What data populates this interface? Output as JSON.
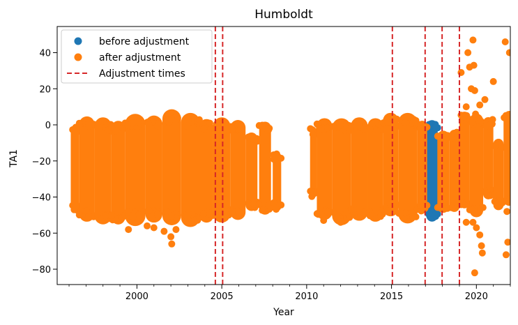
{
  "chart_data": {
    "type": "scatter",
    "title": "Humboldt",
    "xlabel": "Year",
    "ylabel": "TA1",
    "xlim": [
      1995.3,
      2022.0
    ],
    "ylim": [
      -88.5,
      54.5
    ],
    "x_ticks": [
      2000,
      2005,
      2010,
      2015,
      2020
    ],
    "y_ticks": [
      -80,
      -60,
      -40,
      -20,
      0,
      20,
      40
    ],
    "legend_position": "upper-left",
    "grid": false,
    "colors": {
      "before": "#1f77b4",
      "after": "#ff7f0e",
      "adjustment": "#d62728"
    },
    "legend": [
      {
        "label": "before adjustment",
        "kind": "marker",
        "color": "#1f77b4"
      },
      {
        "label": "after adjustment",
        "kind": "marker",
        "color": "#ff7f0e"
      },
      {
        "label": "Adjustment times",
        "kind": "dashed-line",
        "color": "#d62728"
      }
    ],
    "adjustment_times": [
      2004.62,
      2005.05,
      2015.05,
      2016.98,
      2017.98,
      2019.0
    ],
    "series": [
      {
        "name": "before adjustment",
        "bands": [
          {
            "x": [
              2017.05,
              2017.72
            ],
            "y": [
              -52,
              1
            ]
          },
          {
            "x": [
              2018.95,
              2019.15
            ],
            "y": [
              -40,
              -3
            ]
          }
        ],
        "points": []
      },
      {
        "name": "after adjustment",
        "bands": [
          {
            "x": [
              1996.1,
              1996.6
            ],
            "y": [
              -48,
              -1
            ]
          },
          {
            "x": [
              1996.6,
              1997.5
            ],
            "y": [
              -51,
              2
            ]
          },
          {
            "x": [
              1997.5,
              1998.5
            ],
            "y": [
              -52,
              1
            ]
          },
          {
            "x": [
              1998.5,
              1999.3
            ],
            "y": [
              -53,
              0
            ]
          },
          {
            "x": [
              1999.3,
              2000.5
            ],
            "y": [
              -52,
              2
            ]
          },
          {
            "x": [
              2000.5,
              2001.5
            ],
            "y": [
              -51,
              2
            ]
          },
          {
            "x": [
              2001.5,
              2002.6
            ],
            "y": [
              -52,
              5
            ]
          },
          {
            "x": [
              2002.6,
              2003.7
            ],
            "y": [
              -53,
              3
            ]
          },
          {
            "x": [
              2003.7,
              2004.5
            ],
            "y": [
              -52,
              1
            ]
          },
          {
            "x": [
              2004.5,
              2005.5
            ],
            "y": [
              -51,
              1
            ]
          },
          {
            "x": [
              2005.5,
              2006.4
            ],
            "y": [
              -50,
              0
            ]
          },
          {
            "x": [
              2006.4,
              2007.1
            ],
            "y": [
              -46,
              -6
            ]
          },
          {
            "x": [
              2007.2,
              2007.9
            ],
            "y": [
              -48,
              0
            ]
          },
          {
            "x": [
              2008.0,
              2008.5
            ],
            "y": [
              -47,
              -16
            ]
          },
          {
            "x": [
              2010.2,
              2010.6
            ],
            "y": [
              -40,
              -2
            ]
          },
          {
            "x": [
              2010.6,
              2011.5
            ],
            "y": [
              -50,
              1
            ]
          },
          {
            "x": [
              2011.5,
              2012.6
            ],
            "y": [
              -52,
              0
            ]
          },
          {
            "x": [
              2012.6,
              2013.6
            ],
            "y": [
              -50,
              1
            ]
          },
          {
            "x": [
              2013.6,
              2014.5
            ],
            "y": [
              -51,
              1
            ]
          },
          {
            "x": [
              2014.5,
              2015.4
            ],
            "y": [
              -48,
              4
            ]
          },
          {
            "x": [
              2015.4,
              2016.5
            ],
            "y": [
              -51,
              3
            ]
          },
          {
            "x": [
              2016.5,
              2017.1
            ],
            "y": [
              -48,
              1
            ]
          },
          {
            "x": [
              2017.7,
              2018.4
            ],
            "y": [
              -47,
              -5
            ]
          },
          {
            "x": [
              2018.4,
              2019.0
            ],
            "y": [
              -47,
              -4
            ]
          },
          {
            "x": [
              2019.0,
              2019.6
            ],
            "y": [
              -45,
              6
            ]
          },
          {
            "x": [
              2019.6,
              2020.4
            ],
            "y": [
              -49,
              4
            ]
          },
          {
            "x": [
              2020.4,
              2021.0
            ],
            "y": [
              -40,
              3
            ]
          },
          {
            "x": [
              2021.0,
              2021.6
            ],
            "y": [
              -46,
              -9
            ]
          },
          {
            "x": [
              2021.6,
              2022.0
            ],
            "y": [
              -44,
              6
            ]
          }
        ],
        "points": [
          [
            1999.5,
            -58
          ],
          [
            2000.6,
            -56
          ],
          [
            2001.0,
            -57
          ],
          [
            2001.6,
            -59
          ],
          [
            2002.0,
            -62
          ],
          [
            2002.05,
            -66
          ],
          [
            2002.3,
            -58
          ],
          [
            2011.0,
            -53
          ],
          [
            2012.0,
            -54
          ],
          [
            2019.1,
            29
          ],
          [
            2019.5,
            40
          ],
          [
            2019.6,
            32
          ],
          [
            2019.7,
            20
          ],
          [
            2019.8,
            47
          ],
          [
            2019.85,
            33
          ],
          [
            2019.9,
            19
          ],
          [
            2019.4,
            10
          ],
          [
            2019.95,
            6
          ],
          [
            2019.4,
            -54
          ],
          [
            2019.8,
            -54
          ],
          [
            2020.0,
            -57
          ],
          [
            2020.2,
            -61
          ],
          [
            2020.3,
            -67
          ],
          [
            2020.35,
            -71
          ],
          [
            2019.9,
            -82
          ],
          [
            2021.0,
            24
          ],
          [
            2021.7,
            46
          ],
          [
            2021.95,
            40
          ],
          [
            2021.75,
            -72
          ],
          [
            2021.85,
            -65
          ],
          [
            2021.05,
            -39
          ],
          [
            2020.5,
            14
          ],
          [
            2020.2,
            11
          ],
          [
            2021.8,
            -48
          ]
        ]
      }
    ]
  }
}
